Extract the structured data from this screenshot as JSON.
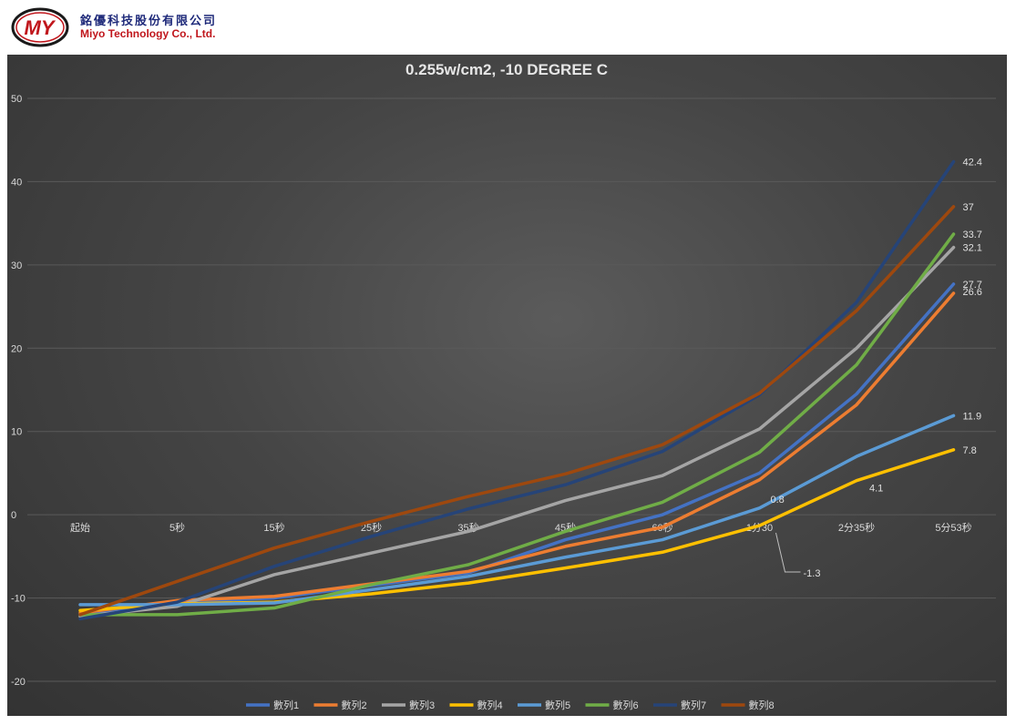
{
  "header": {
    "logo_text": "MY",
    "company_cn": "銘優科技股份有限公司",
    "company_en": "Miyo Technology Co., Ltd."
  },
  "colors": {
    "background": "#3f3f3f",
    "text": "#d9d9d9",
    "grid": "#5a5a5a"
  },
  "chart_data": {
    "type": "line",
    "title": "0.255w/cm2, -10 DEGREE C",
    "categories": [
      "起始",
      "5秒",
      "15秒",
      "25秒",
      "35秒",
      "45秒",
      "60秒",
      "1分30",
      "2分35秒",
      "5分53秒"
    ],
    "ylim": [
      -20,
      50
    ],
    "yticks": [
      -20,
      -10,
      0,
      10,
      20,
      30,
      40,
      50
    ],
    "grid": true,
    "legend": "bottom",
    "series": [
      {
        "name": "數列1",
        "color": "#4472c4",
        "values": [
          -12.0,
          -10.5,
          -10.0,
          -8.5,
          -7.0,
          -3.0,
          0.0,
          5.0,
          14.5,
          27.7
        ]
      },
      {
        "name": "數列2",
        "color": "#ed7d31",
        "values": [
          -11.8,
          -10.3,
          -9.8,
          -8.3,
          -6.8,
          -3.8,
          -1.5,
          4.2,
          13.2,
          26.6
        ]
      },
      {
        "name": "數列3",
        "color": "#a5a5a5",
        "values": [
          -12.2,
          -11.0,
          -7.2,
          -4.6,
          -2.0,
          1.7,
          4.7,
          10.3,
          20.0,
          32.1
        ]
      },
      {
        "name": "數列4",
        "color": "#ffc000",
        "values": [
          -11.5,
          -10.7,
          -10.5,
          -9.5,
          -8.2,
          -6.4,
          -4.5,
          -1.3,
          4.1,
          7.8
        ]
      },
      {
        "name": "數列5",
        "color": "#5b9bd5",
        "values": [
          -10.8,
          -10.8,
          -10.6,
          -9.0,
          -7.4,
          -5.1,
          -3.0,
          0.8,
          7.0,
          11.9
        ]
      },
      {
        "name": "數列6",
        "color": "#70ad47",
        "values": [
          -12.0,
          -12.0,
          -11.2,
          -8.4,
          -6.0,
          -2.0,
          1.5,
          7.5,
          18.0,
          33.7
        ]
      },
      {
        "name": "數列7",
        "color": "#264478",
        "values": [
          -12.5,
          -10.5,
          -6.2,
          -2.6,
          0.7,
          3.6,
          7.6,
          14.4,
          25.5,
          42.4
        ]
      },
      {
        "name": "數列8",
        "color": "#9e480e",
        "values": [
          -12.0,
          -8.0,
          -4.0,
          -0.8,
          2.2,
          4.9,
          8.4,
          14.6,
          24.5,
          37.0
        ]
      }
    ],
    "data_labels": [
      {
        "series": 6,
        "index": 9,
        "text": "42.4"
      },
      {
        "series": 7,
        "index": 9,
        "text": "37"
      },
      {
        "series": 5,
        "index": 9,
        "text": "33.7"
      },
      {
        "series": 2,
        "index": 9,
        "text": "32.1"
      },
      {
        "series": 0,
        "index": 9,
        "text": "27.7"
      },
      {
        "series": 1,
        "index": 9,
        "text": "26.6"
      },
      {
        "series": 4,
        "index": 9,
        "text": "11.9"
      },
      {
        "series": 3,
        "index": 9,
        "text": "7.8"
      },
      {
        "series": 3,
        "index": 8,
        "text": "4.1"
      },
      {
        "series": 4,
        "index": 7,
        "text": "0.8"
      },
      {
        "series": 3,
        "index": 7,
        "text": "-1.3",
        "callout": true
      }
    ]
  }
}
